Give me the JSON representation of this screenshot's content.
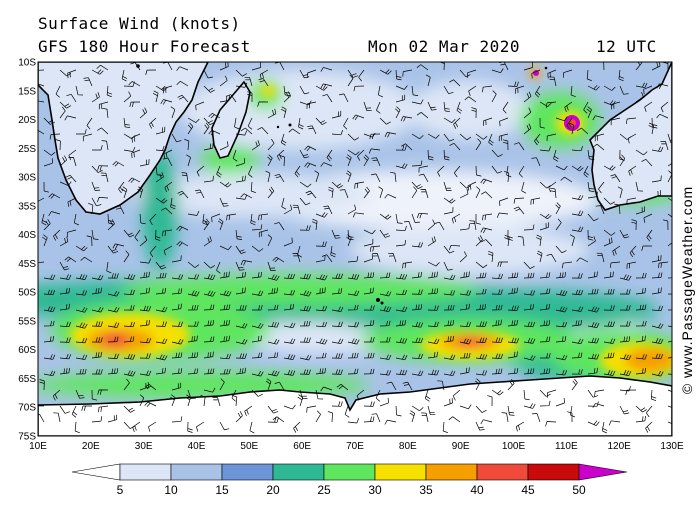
{
  "header": {
    "title": "Surface Wind (knots)",
    "model": "GFS 180 Hour Forecast",
    "date": "Mon 02 Mar 2020",
    "time": "12 UTC"
  },
  "credit": "© www.PassageWeather.com",
  "map": {
    "lon_range": [
      10,
      130
    ],
    "lat_range": [
      -10,
      -75
    ],
    "lat_ticks": [
      "10S",
      "15S",
      "20S",
      "25S",
      "30S",
      "35S",
      "40S",
      "45S",
      "50S",
      "55S",
      "60S",
      "65S",
      "70S",
      "75S"
    ],
    "lon_ticks": [
      "10E",
      "20E",
      "30E",
      "40E",
      "50E",
      "60E",
      "70E",
      "80E",
      "90E",
      "100E",
      "110E",
      "120E",
      "130E"
    ]
  },
  "legend": {
    "unit": "knots",
    "labels": [
      "5",
      "10",
      "15",
      "20",
      "25",
      "30",
      "35",
      "40",
      "45",
      "50"
    ],
    "colors": [
      "#ffffff",
      "#dde6f6",
      "#a9c3e8",
      "#6d95d8",
      "#2eb994",
      "#5ee65e",
      "#f5e000",
      "#f5a000",
      "#f04a3a",
      "#c80a0a",
      "#cc00cc"
    ]
  }
}
